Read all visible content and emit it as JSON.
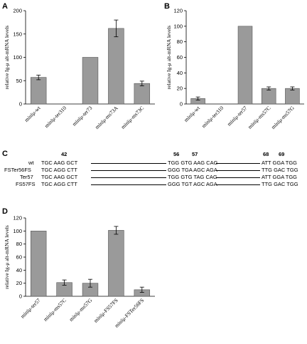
{
  "panels": {
    "A": "A",
    "B": "B",
    "C": "C",
    "D": "D"
  },
  "chart_data": [
    {
      "panel": "A",
      "type": "bar",
      "ylabel": "relative Ig-μ alt-mRNA levels",
      "ylim": [
        0,
        200
      ],
      "yticks": [
        0,
        50,
        100,
        150,
        200
      ],
      "categories": [
        "minīμ-wt",
        "minīμ-ter310",
        "minīμ-ter73",
        "minīμ-ms73A",
        "minīμ-ms73C"
      ],
      "values": [
        57,
        0,
        100,
        162,
        44
      ],
      "errors": [
        5,
        0,
        0,
        18,
        5
      ],
      "bar_color": "#9a9a9a"
    },
    {
      "panel": "B",
      "type": "bar",
      "ylabel": "relative Ig-μ alt-mRNA levels",
      "ylim": [
        0,
        120
      ],
      "yticks": [
        0,
        20,
        40,
        60,
        80,
        100,
        120
      ],
      "categories": [
        "minīμ-wt",
        "minīμ-ter310",
        "minīμ-ter57",
        "minīμ-ms57C",
        "minīμ-ms57G"
      ],
      "values": [
        7,
        0,
        100,
        20,
        20
      ],
      "errors": [
        2,
        0,
        0,
        2,
        2
      ],
      "bar_color": "#9a9a9a"
    },
    {
      "panel": "D",
      "type": "bar",
      "ylabel": "relative Ig-μ alt-mRNA levels",
      "ylim": [
        0,
        120
      ],
      "yticks": [
        0,
        20,
        40,
        60,
        80,
        100,
        120
      ],
      "categories": [
        "minīμ-ter57",
        "minīμ-ms57C",
        "minīμ-ms57G",
        "minīμ-FS57FS",
        "minīμ-FSTer56FS"
      ],
      "values": [
        100,
        21,
        20,
        101,
        10
      ],
      "errors": [
        0,
        4,
        6,
        6,
        4
      ],
      "bar_color": "#9a9a9a"
    }
  ],
  "sequence": {
    "positions": [
      "42",
      "56",
      "57",
      "68",
      "69"
    ],
    "rows": [
      {
        "label": "wt",
        "seg1": "TGC AAG GCT",
        "seg2": "TGG GTG AAG CAG",
        "seg3": "ATT GGA TGG"
      },
      {
        "label": "FSTer56FS",
        "seg1": "TGC AGG CTT",
        "seg2": "GGG TGA AGC AGA",
        "seg3": "TTG GAC TGG"
      },
      {
        "label": "Ter57",
        "seg1": "TGC AAG GCT",
        "seg2": "TGG GTG TAG CAG",
        "seg3": "ATT GGA TGG"
      },
      {
        "label": "FS57FS",
        "seg1": "TGC AGG CTT",
        "seg2": "GGG TGT AGC AGA",
        "seg3": "TTG GAC TGG"
      }
    ]
  }
}
